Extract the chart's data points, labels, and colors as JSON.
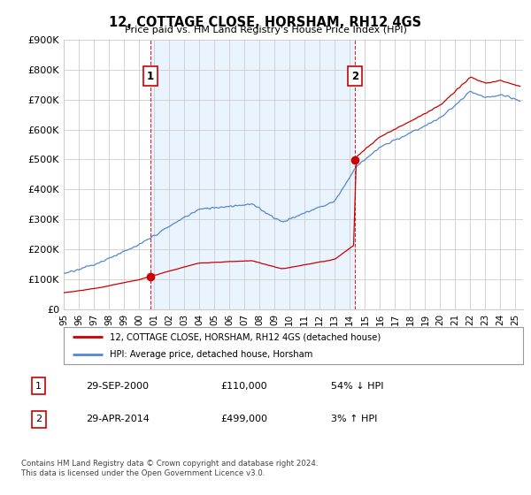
{
  "title": "12, COTTAGE CLOSE, HORSHAM, RH12 4GS",
  "subtitle": "Price paid vs. HM Land Registry's House Price Index (HPI)",
  "ylabel_ticks": [
    "£0",
    "£100K",
    "£200K",
    "£300K",
    "£400K",
    "£500K",
    "£600K",
    "£700K",
    "£800K",
    "£900K"
  ],
  "ylim": [
    0,
    900000
  ],
  "xlim_start": 1995.0,
  "xlim_end": 2025.5,
  "x_tick_years": [
    1995,
    1996,
    1997,
    1998,
    1999,
    2000,
    2001,
    2002,
    2003,
    2004,
    2005,
    2006,
    2007,
    2008,
    2009,
    2010,
    2011,
    2012,
    2013,
    2014,
    2015,
    2016,
    2017,
    2018,
    2019,
    2020,
    2021,
    2022,
    2023,
    2024,
    2025
  ],
  "x_tick_labels": [
    "95",
    "96",
    "97",
    "98",
    "99",
    "00",
    "01",
    "02",
    "03",
    "04",
    "05",
    "06",
    "07",
    "08",
    "09",
    "10",
    "11",
    "12",
    "13",
    "14",
    "15",
    "16",
    "17",
    "18",
    "19",
    "20",
    "21",
    "22",
    "23",
    "24",
    "25"
  ],
  "purchase1": {
    "date_x": 2000.75,
    "price": 110000,
    "label": "1"
  },
  "purchase2": {
    "date_x": 2014.33,
    "price": 499000,
    "label": "2"
  },
  "hpi_color": "#5588cc",
  "purchase_color": "#cc0000",
  "dashed_line_color": "#cc0000",
  "annotation_box_color": "#cc0000",
  "shade_color": "#ddeeff",
  "legend_label_red": "12, COTTAGE CLOSE, HORSHAM, RH12 4GS (detached house)",
  "legend_label_blue": "HPI: Average price, detached house, Horsham",
  "footer_text1": "Contains HM Land Registry data © Crown copyright and database right 2024.",
  "footer_text2": "This data is licensed under the Open Government Licence v3.0.",
  "table_rows": [
    {
      "num": "1",
      "date": "29-SEP-2000",
      "price": "£110,000",
      "hpi": "54% ↓ HPI"
    },
    {
      "num": "2",
      "date": "29-APR-2014",
      "price": "£499,000",
      "hpi": "3% ↑ HPI"
    }
  ],
  "background_color": "#ffffff",
  "grid_color": "#cccccc"
}
